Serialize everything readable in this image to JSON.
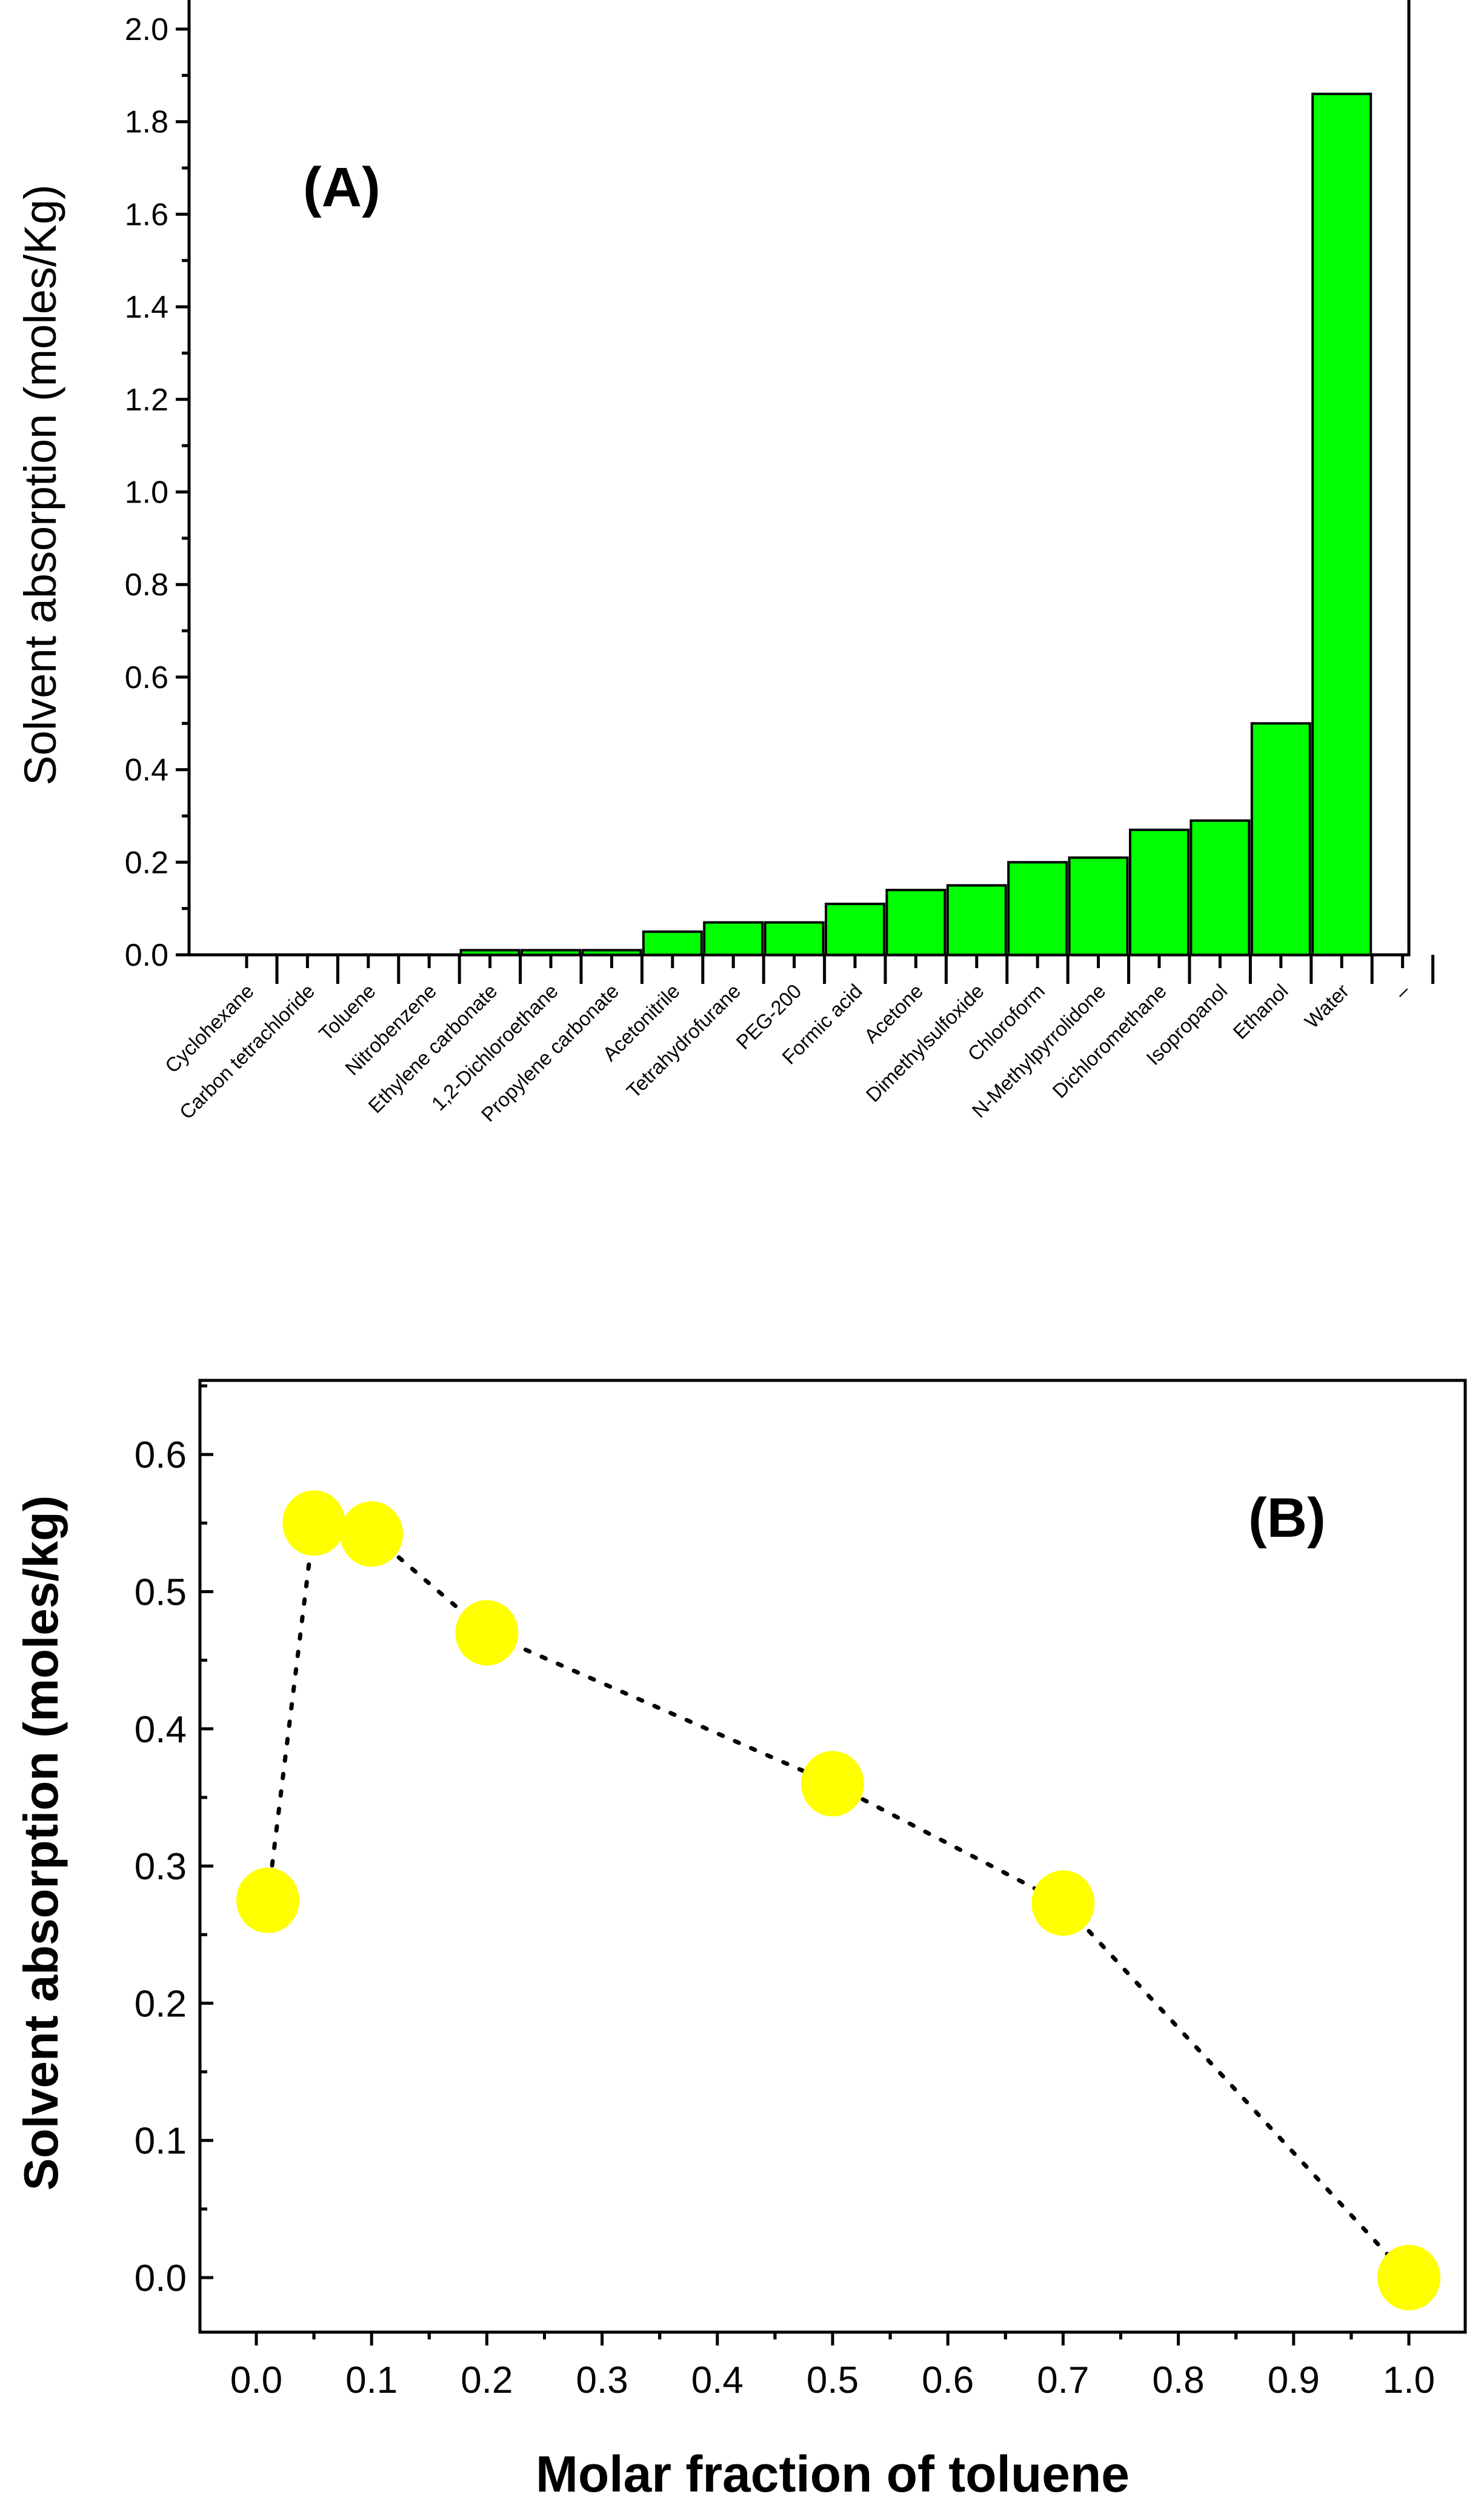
{
  "chart_data": [
    {
      "type": "bar",
      "panel_label": "(A)",
      "title": "",
      "xlabel": "",
      "ylabel": "Solvent absorption (moles/Kg)",
      "ylim": [
        0,
        2.0
      ],
      "yticks": [
        "0.0",
        "0.2",
        "0.4",
        "0.6",
        "0.8",
        "1.0",
        "1.2",
        "1.4",
        "1.6",
        "1.8",
        "2.0"
      ],
      "categories": [
        "Cyclohexane",
        "Carbon tetrachloride",
        "Toluene",
        "Nitrobenzene",
        "Ethylene carbonate",
        "1,2-Dichloroethane",
        "Propylene carbonate",
        "Acetonitrile",
        "Tetrahydrofurane",
        "PEG-200",
        "Formic acid",
        "Acetone",
        "Dimethylsulfoxide",
        "Chloroform",
        "N-Methylpyrrolidone",
        "Dichloromethane",
        "Isopropanol",
        "Ethanol",
        "Water",
        "–"
      ],
      "values": [
        0,
        0,
        0,
        0,
        0.01,
        0.01,
        0.01,
        0.05,
        0.07,
        0.07,
        0.11,
        0.14,
        0.15,
        0.2,
        0.21,
        0.27,
        0.29,
        0.5,
        1.86,
        null
      ],
      "bar_color": "#00ff00",
      "grid": false
    },
    {
      "type": "scatter",
      "panel_label": "(B)",
      "title": "",
      "xlabel": "Molar fraction of toluene",
      "ylabel": "Solvent absorption (moles/kg)",
      "xlim": [
        -0.05,
        1.05
      ],
      "ylim": [
        -0.07,
        0.65
      ],
      "xticks": [
        "0.0",
        "0.1",
        "0.2",
        "0.3",
        "0.4",
        "0.5",
        "0.6",
        "0.7",
        "0.8",
        "0.9",
        "1.0"
      ],
      "yticks": [
        "0.0",
        "0.1",
        "0.2",
        "0.3",
        "0.4",
        "0.5",
        "0.6"
      ],
      "x": [
        0.01,
        0.05,
        0.1,
        0.2,
        0.5,
        0.7,
        1.0
      ],
      "y": [
        0.275,
        0.55,
        0.542,
        0.47,
        0.36,
        0.273,
        0.0
      ],
      "marker_color": "#ffff00",
      "line_style": "dotted",
      "grid": false
    }
  ]
}
